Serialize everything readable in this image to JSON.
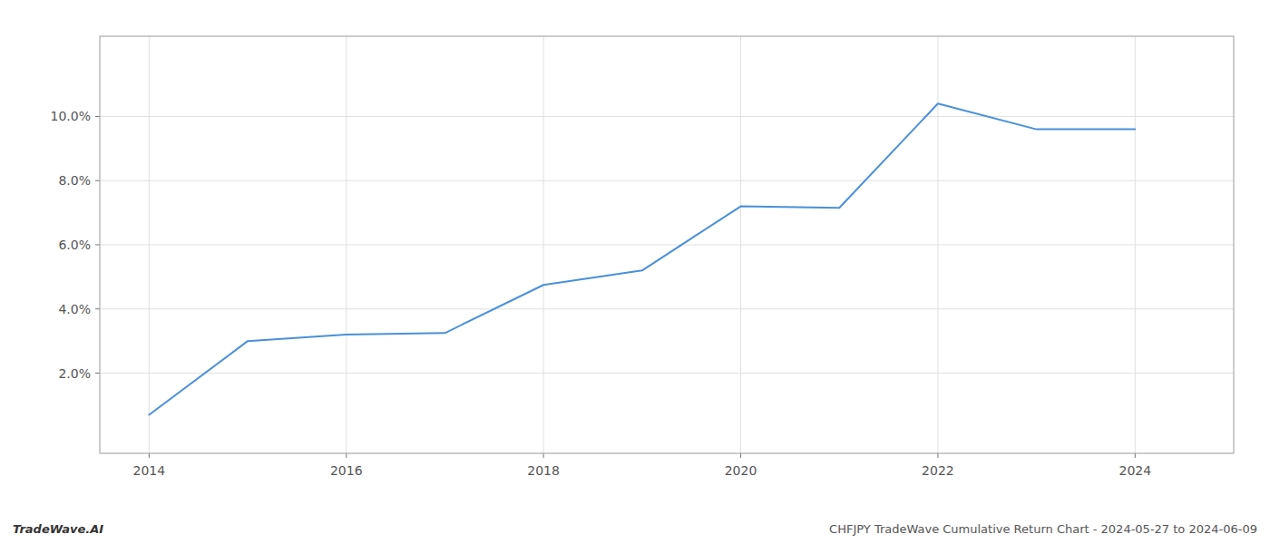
{
  "chart_data": {
    "type": "line",
    "x": [
      2014,
      2015,
      2016,
      2017,
      2018,
      2019,
      2020,
      2021,
      2022,
      2023,
      2024
    ],
    "values": [
      0.007,
      0.03,
      0.032,
      0.0325,
      0.0475,
      0.052,
      0.072,
      0.0715,
      0.104,
      0.096,
      0.096
    ],
    "color": "#4a90d9",
    "xlim": [
      2013.5,
      2025.0
    ],
    "ylim": [
      -0.005,
      0.125
    ],
    "xticks": [
      2014,
      2016,
      2018,
      2020,
      2022,
      2024
    ],
    "yticks": [
      {
        "value": 0.02,
        "label": "2.0%"
      },
      {
        "value": 0.04,
        "label": "4.0%"
      },
      {
        "value": 0.06,
        "label": "6.0%"
      },
      {
        "value": 0.08,
        "label": "8.0%"
      },
      {
        "value": 0.1,
        "label": "10.0%"
      }
    ],
    "grid": true,
    "annotations": [
      "TradeWave.AI",
      "CHFJPY TradeWave Cumulative Return Chart - 2024-05-27 to 2024-06-09"
    ]
  }
}
